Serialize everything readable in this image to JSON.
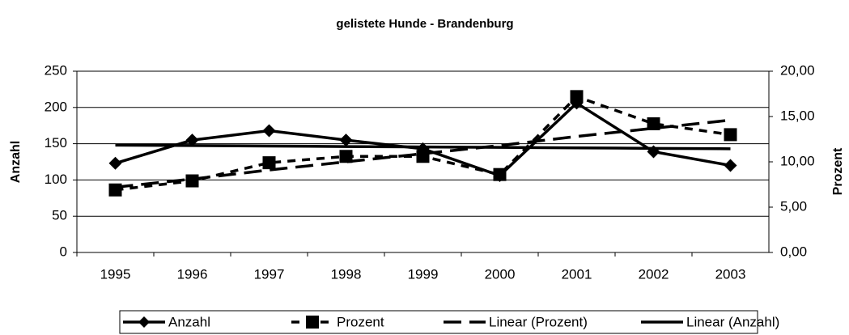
{
  "chart_data": {
    "type": "line",
    "title": "gelistete Hunde - Brandenburg",
    "y_label": "Anzahl",
    "y2_label": "Prozent",
    "categories": [
      "1995",
      "1996",
      "1997",
      "1998",
      "1999",
      "2000",
      "2001",
      "2002",
      "2003"
    ],
    "series": [
      {
        "name": "Anzahl",
        "color": "#000000",
        "marker": "diamond",
        "dash": "solid",
        "values": [
          123,
          155,
          168,
          155,
          143,
          106,
          206,
          139,
          120
        ]
      },
      {
        "name": "Prozent",
        "color": "#000000",
        "marker": "square",
        "dash": "dashed",
        "axis": "y2",
        "values": [
          6.9,
          7.9,
          9.9,
          10.6,
          10.6,
          8.6,
          17.2,
          14.2,
          13.0
        ]
      },
      {
        "name": "Linear (Prozent)",
        "color": "#000000",
        "marker": "none",
        "dash": "longdash",
        "axis": "y2",
        "values": [
          7.2,
          8.1,
          9.1,
          10.0,
          10.9,
          11.8,
          12.8,
          13.7,
          14.6
        ]
      },
      {
        "name": "Linear (Anzahl)",
        "color": "#000000",
        "marker": "none",
        "dash": "solid",
        "values": [
          148,
          147.4,
          146.8,
          146.1,
          145.5,
          144.9,
          144.3,
          143.6,
          143.0
        ]
      }
    ],
    "ylim": [
      0,
      250
    ],
    "yticks": [
      0,
      50,
      100,
      150,
      200,
      250
    ],
    "y2lim": [
      0,
      20
    ],
    "y2ticks": [
      {
        "value": 0,
        "label": "0,00"
      },
      {
        "value": 5,
        "label": "5,00"
      },
      {
        "value": 10,
        "label": "10,00"
      },
      {
        "value": 15,
        "label": "15,00"
      },
      {
        "value": 20,
        "label": "20,00"
      }
    ],
    "grid": true,
    "legend": "bottom"
  }
}
